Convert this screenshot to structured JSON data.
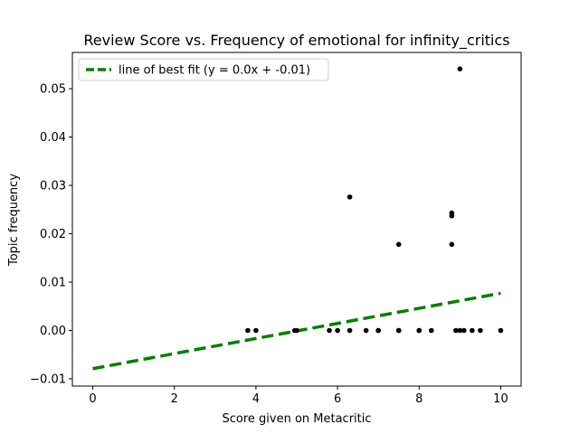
{
  "chart_data": {
    "type": "scatter",
    "title": "Review Score vs. Frequency of emotional for infinity_critics",
    "xlabel": "Score given on Metacritic",
    "ylabel": "Topic frequency",
    "xlim": [
      -0.5,
      10.5
    ],
    "ylim": [
      -0.0115,
      0.0575
    ],
    "xticks": [
      0,
      2,
      4,
      6,
      8,
      10
    ],
    "yticks": [
      -0.01,
      0.0,
      0.01,
      0.02,
      0.03,
      0.04,
      0.05
    ],
    "xtick_labels": [
      "0",
      "2",
      "4",
      "6",
      "8",
      "10"
    ],
    "ytick_labels": [
      "−0.01",
      "0.00",
      "0.01",
      "0.02",
      "0.03",
      "0.04",
      "0.05"
    ],
    "grid": false,
    "legend_position": "top-left",
    "series": [
      {
        "type": "scatter",
        "color": "#000000",
        "points": [
          [
            3.8,
            0.0
          ],
          [
            4.0,
            0.0
          ],
          [
            4.95,
            0.0
          ],
          [
            5.0,
            0.0
          ],
          [
            5.8,
            0.0
          ],
          [
            6.0,
            0.0
          ],
          [
            6.3,
            0.0
          ],
          [
            6.3,
            0.0276
          ],
          [
            6.7,
            0.0
          ],
          [
            7.0,
            0.0
          ],
          [
            7.0,
            0.0
          ],
          [
            7.5,
            0.0
          ],
          [
            7.5,
            0.0
          ],
          [
            7.5,
            0.0178
          ],
          [
            8.0,
            0.0
          ],
          [
            8.0,
            0.0
          ],
          [
            8.3,
            0.0
          ],
          [
            8.8,
            0.0178
          ],
          [
            8.8,
            0.0237
          ],
          [
            8.8,
            0.0243
          ],
          [
            8.9,
            0.0
          ],
          [
            9.0,
            0.0
          ],
          [
            9.0,
            0.0541
          ],
          [
            9.1,
            0.0
          ],
          [
            9.3,
            0.0
          ],
          [
            9.5,
            0.0
          ],
          [
            10.0,
            0.0
          ]
        ]
      },
      {
        "type": "line",
        "name": "line of best fit (y = 0.0x + -0.01)",
        "color": "#008000",
        "dashed": true,
        "x": [
          0,
          10
        ],
        "y": [
          -0.0079,
          0.0077
        ]
      }
    ]
  }
}
